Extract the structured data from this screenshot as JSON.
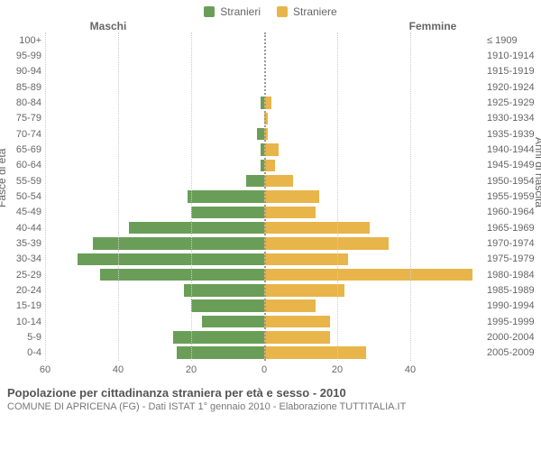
{
  "legend": {
    "male": {
      "label": "Stranieri",
      "color": "#6a9e58"
    },
    "female": {
      "label": "Straniere",
      "color": "#e8b54a"
    }
  },
  "headers": {
    "male": "Maschi",
    "female": "Femmine"
  },
  "axis_titles": {
    "left": "Fasce di età",
    "right": "Anni di nascita"
  },
  "footer": {
    "title": "Popolazione per cittadinanza straniera per età e sesso - 2010",
    "subtitle": "COMUNE DI APRICENA (FG) - Dati ISTAT 1° gennaio 2010 - Elaborazione TUTTITALIA.IT"
  },
  "pyramid": {
    "type": "population-pyramid",
    "x_max": 60,
    "x_ticks": [
      60,
      40,
      20,
      0,
      20,
      40
    ],
    "grid_color": "#cccccc",
    "center_line_color": "#999999",
    "background_color": "#ffffff",
    "male_color": "#6a9e58",
    "female_color": "#e8b54a",
    "label_fontsize": 11,
    "rows": [
      {
        "age": "100+",
        "birth": "≤ 1909",
        "m": 0,
        "f": 0
      },
      {
        "age": "95-99",
        "birth": "1910-1914",
        "m": 0,
        "f": 0
      },
      {
        "age": "90-94",
        "birth": "1915-1919",
        "m": 0,
        "f": 0
      },
      {
        "age": "85-89",
        "birth": "1920-1924",
        "m": 0,
        "f": 0
      },
      {
        "age": "80-84",
        "birth": "1925-1929",
        "m": 1,
        "f": 2
      },
      {
        "age": "75-79",
        "birth": "1930-1934",
        "m": 0,
        "f": 1
      },
      {
        "age": "70-74",
        "birth": "1935-1939",
        "m": 2,
        "f": 1
      },
      {
        "age": "65-69",
        "birth": "1940-1944",
        "m": 1,
        "f": 4
      },
      {
        "age": "60-64",
        "birth": "1945-1949",
        "m": 1,
        "f": 3
      },
      {
        "age": "55-59",
        "birth": "1950-1954",
        "m": 5,
        "f": 8
      },
      {
        "age": "50-54",
        "birth": "1955-1959",
        "m": 21,
        "f": 15
      },
      {
        "age": "45-49",
        "birth": "1960-1964",
        "m": 20,
        "f": 14
      },
      {
        "age": "40-44",
        "birth": "1965-1969",
        "m": 37,
        "f": 29
      },
      {
        "age": "35-39",
        "birth": "1970-1974",
        "m": 47,
        "f": 34
      },
      {
        "age": "30-34",
        "birth": "1975-1979",
        "m": 51,
        "f": 23
      },
      {
        "age": "25-29",
        "birth": "1980-1984",
        "m": 45,
        "f": 57
      },
      {
        "age": "20-24",
        "birth": "1985-1989",
        "m": 22,
        "f": 22
      },
      {
        "age": "15-19",
        "birth": "1990-1994",
        "m": 20,
        "f": 14
      },
      {
        "age": "10-14",
        "birth": "1995-1999",
        "m": 17,
        "f": 18
      },
      {
        "age": "5-9",
        "birth": "2000-2004",
        "m": 25,
        "f": 18
      },
      {
        "age": "0-4",
        "birth": "2005-2009",
        "m": 24,
        "f": 28
      }
    ]
  }
}
